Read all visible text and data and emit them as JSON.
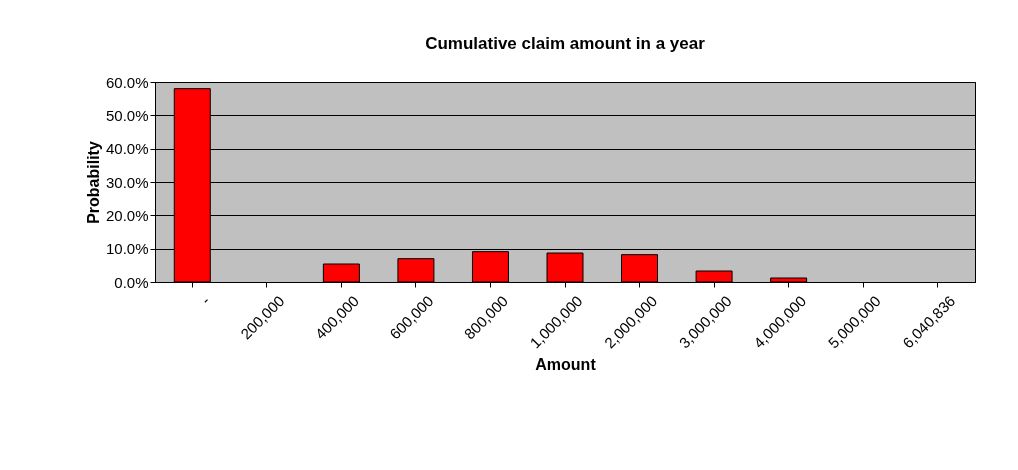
{
  "chart_data": {
    "type": "bar",
    "title": "Cumulative claim amount in a year",
    "xlabel": "Amount",
    "ylabel": "Probability",
    "categories": [
      "-",
      "200,000",
      "400,000",
      "600,000",
      "800,000",
      "1,000,000",
      "2,000,000",
      "3,000,000",
      "4,000,000",
      "5,000,000",
      "6,040,836"
    ],
    "values": [
      58,
      0,
      5.4,
      7.0,
      9.1,
      8.7,
      8.2,
      3.3,
      1.2,
      0,
      0
    ],
    "color": "#ff0000",
    "ylim": [
      0,
      60
    ],
    "yticks": [
      {
        "value": 0,
        "label": "0.0%"
      },
      {
        "value": 10,
        "label": "10.0%"
      },
      {
        "value": 20,
        "label": "20.0%"
      },
      {
        "value": 30,
        "label": "30.0%"
      },
      {
        "value": 40,
        "label": "40.0%"
      },
      {
        "value": 50,
        "label": "50.0%"
      },
      {
        "value": 60,
        "label": "60.0%"
      }
    ],
    "grid": "y"
  }
}
